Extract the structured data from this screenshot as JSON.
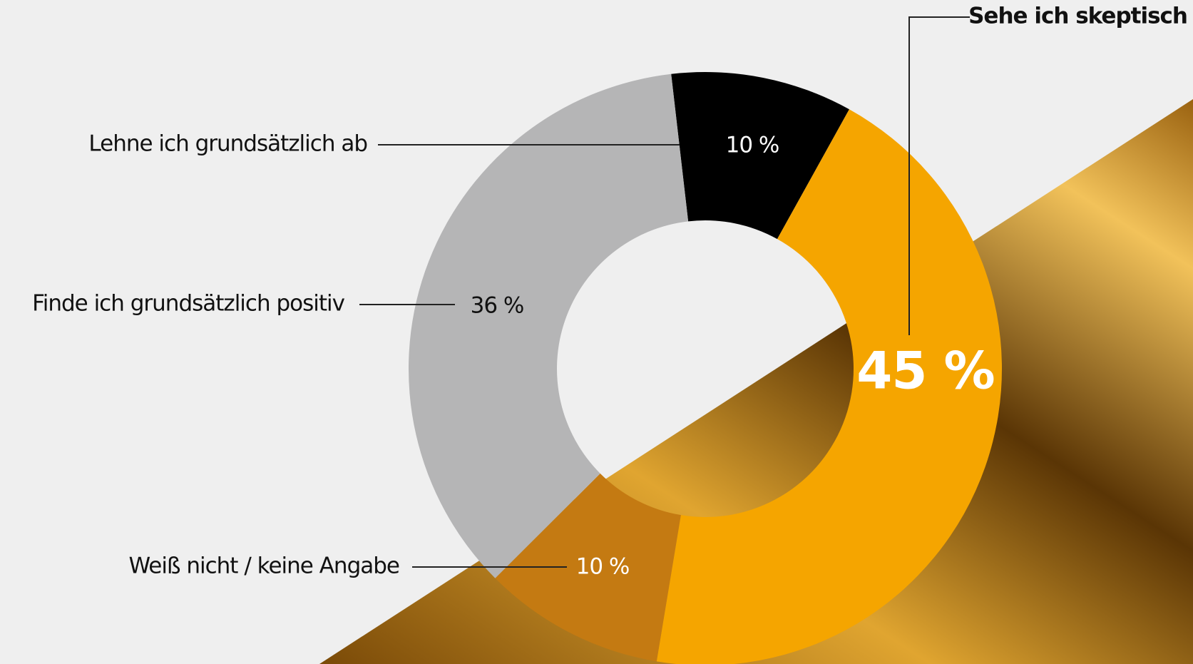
{
  "chart_data": {
    "type": "donut",
    "categories": [
      "Lehne ich grundsätzlich ab",
      "Sehe ich skeptisch",
      "Weiß nicht / keine Angabe",
      "Finde ich grundsätzlich positiv"
    ],
    "values": [
      10,
      45,
      10,
      36
    ],
    "value_labels": [
      "10 %",
      "45 %",
      "10 %",
      "36 %"
    ],
    "colors": [
      "#000000",
      "#f5a500",
      "#c47a12",
      "#b5b5b6"
    ]
  }
}
